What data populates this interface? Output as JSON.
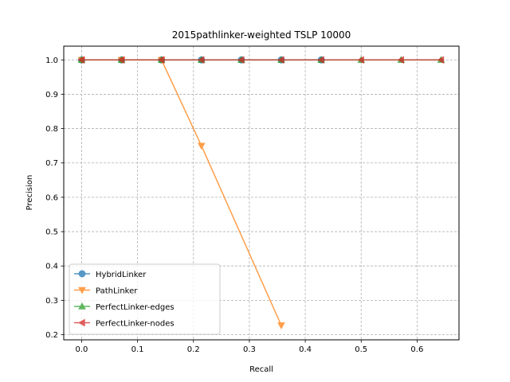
{
  "chart_data": {
    "type": "line",
    "title": "2015pathlinker-weighted TSLP 10000",
    "xlabel": "Recall",
    "ylabel": "Precision",
    "xlim": [
      -0.032,
      0.675
    ],
    "ylim": [
      0.185,
      1.04
    ],
    "xticks": [
      0.0,
      0.1,
      0.2,
      0.3,
      0.4,
      0.5,
      0.6
    ],
    "xtick_labels": [
      "0.0",
      "0.1",
      "0.2",
      "0.3",
      "0.4",
      "0.5",
      "0.6"
    ],
    "yticks": [
      0.2,
      0.3,
      0.4,
      0.5,
      0.6,
      0.7,
      0.8,
      0.9,
      1.0
    ],
    "ytick_labels": [
      "0.2",
      "0.3",
      "0.4",
      "0.5",
      "0.6",
      "0.7",
      "0.8",
      "0.9",
      "1.0"
    ],
    "grid": true,
    "legend_position": "lower-left",
    "series": [
      {
        "name": "HybridLinker",
        "color": "#1f77b4",
        "marker": "circle",
        "x": [
          0.0,
          0.0714,
          0.1429,
          0.2143,
          0.2857,
          0.3571,
          0.4286
        ],
        "y": [
          1.0,
          1.0,
          1.0,
          1.0,
          1.0,
          1.0,
          1.0
        ]
      },
      {
        "name": "PathLinker",
        "color": "#ff7f0e",
        "marker": "triangle-down",
        "x": [
          0.0,
          0.0714,
          0.1429,
          0.2143,
          0.3571
        ],
        "y": [
          1.0,
          1.0,
          1.0,
          0.75,
          0.227
        ]
      },
      {
        "name": "PerfectLinker-edges",
        "color": "#2ca02c",
        "marker": "triangle-up",
        "x": [
          0.0,
          0.0714,
          0.1429,
          0.2143,
          0.2857,
          0.3571,
          0.4286,
          0.5,
          0.5714,
          0.6429
        ],
        "y": [
          1.0,
          1.0,
          1.0,
          1.0,
          1.0,
          1.0,
          1.0,
          1.0,
          1.0,
          1.0
        ]
      },
      {
        "name": "PerfectLinker-nodes",
        "color": "#d62728",
        "marker": "triangle-left",
        "x": [
          0.0,
          0.0714,
          0.1429,
          0.2143,
          0.2857,
          0.3571,
          0.4286,
          0.5,
          0.5714,
          0.6429
        ],
        "y": [
          1.0,
          1.0,
          1.0,
          1.0,
          1.0,
          1.0,
          1.0,
          1.0,
          1.0,
          1.0
        ]
      }
    ]
  }
}
